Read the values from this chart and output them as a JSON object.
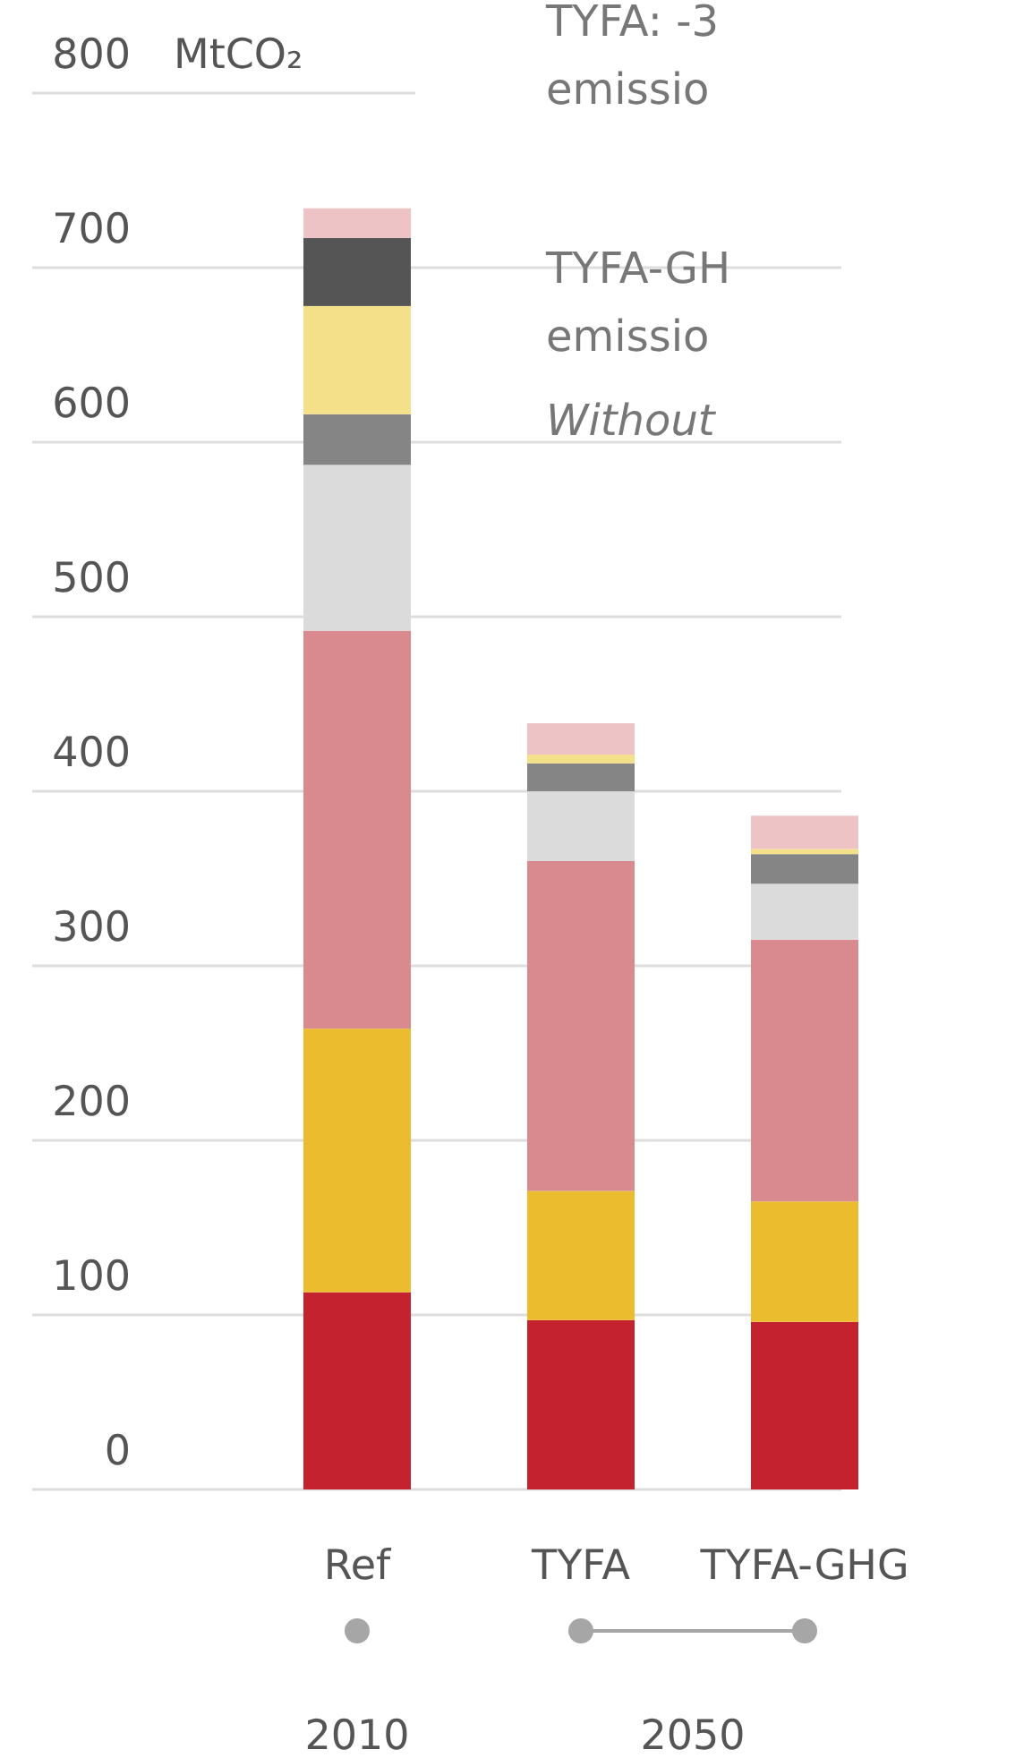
{
  "chart_data": {
    "type": "bar",
    "stacked": true,
    "ylabel": "MtCO₂",
    "categories": [
      "Ref",
      "TYFA",
      "TYFA-GHG"
    ],
    "series": [
      {
        "color": "#c4222f",
        "values": [
          113,
          97,
          96
        ]
      },
      {
        "color": "#ebbd2e",
        "values": [
          151,
          74,
          69
        ]
      },
      {
        "color": "#d88a8f",
        "values": [
          228,
          189,
          150
        ]
      },
      {
        "color": "#dcdbdc",
        "values": [
          95,
          40,
          32
        ]
      },
      {
        "color": "#858585",
        "values": [
          29,
          16,
          17
        ]
      },
      {
        "color": "#f5e08a",
        "values": [
          62,
          5,
          3
        ]
      },
      {
        "color": "#555555",
        "values": [
          39,
          0,
          0
        ]
      },
      {
        "color": "#edc3c6",
        "values": [
          17,
          18,
          19
        ]
      }
    ],
    "ylim": [
      0,
      800
    ],
    "yticks": [
      0,
      100,
      200,
      300,
      400,
      500,
      600,
      700,
      800
    ],
    "grid": "y",
    "annotations": [
      "TYFA: -3",
      "emissio",
      "TYFA-GH",
      "emissio",
      "Without",
      "2010",
      "2050"
    ]
  }
}
